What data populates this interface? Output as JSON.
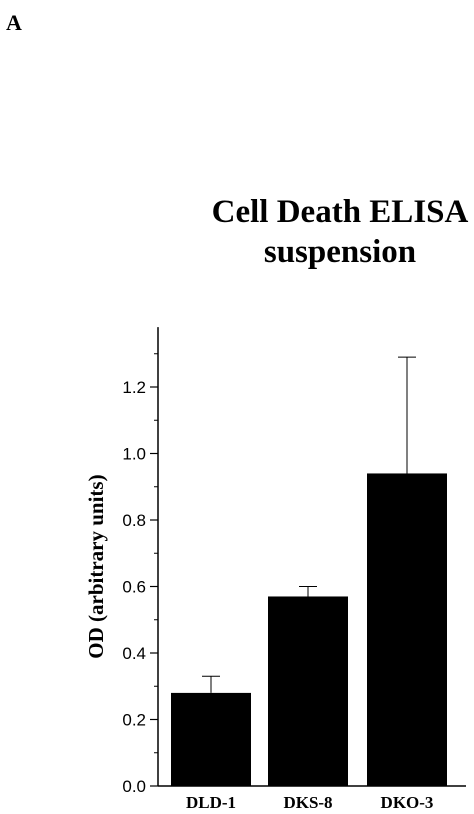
{
  "panel_label": "A",
  "chart_data": {
    "type": "bar",
    "title_lines": [
      "Cell Death ELISA",
      "suspension"
    ],
    "categories": [
      "DLD-1",
      "DKS-8",
      "DKO-3"
    ],
    "values": [
      0.28,
      0.57,
      0.94
    ],
    "error_plus": [
      0.05,
      0.03,
      0.35
    ],
    "xlabel": "",
    "ylabel": "OD (arbitrary units)",
    "ylim": [
      0,
      1.38
    ],
    "yticks": [
      "0.0",
      "0.2",
      "0.4",
      "0.6",
      "0.8",
      "1.0",
      "1.2"
    ],
    "grid": false,
    "bar_color": "#000000"
  }
}
